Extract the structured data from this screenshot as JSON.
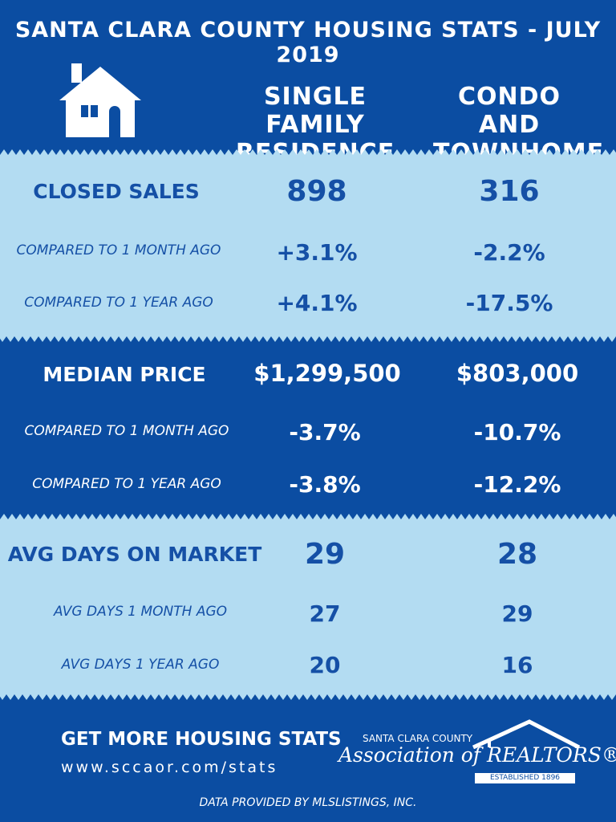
{
  "title": "SANTA CLARA COUNTY HOUSING STATS - JULY 2019",
  "columns": {
    "sfr": "SINGLE FAMILY\nRESIDENCE",
    "condo": "CONDO AND\nTOWNHOME"
  },
  "sections": {
    "closed_sales": {
      "label": "CLOSED SALES",
      "sfr": "898",
      "condo": "316",
      "month_label": "COMPARED TO 1 MONTH AGO",
      "month_sfr": "+3.1%",
      "month_condo": "-2.2%",
      "year_label": "COMPARED TO 1 YEAR AGO",
      "year_sfr": "+4.1%",
      "year_condo": "-17.5%"
    },
    "median_price": {
      "label": "MEDIAN PRICE",
      "sfr": "$1,299,500",
      "condo": "$803,000",
      "month_label": "COMPARED TO 1 MONTH AGO",
      "month_sfr": "-3.7%",
      "month_condo": "-10.7%",
      "year_label": "COMPARED TO 1 YEAR AGO",
      "year_sfr": "-3.8%",
      "year_condo": "-12.2%"
    },
    "avg_days": {
      "label": "AVG DAYS ON MARKET",
      "sfr": "29",
      "condo": "28",
      "month_label": "AVG DAYS 1 MONTH AGO",
      "month_sfr": "27",
      "month_condo": "29",
      "year_label": "AVG DAYS 1 YEAR AGO",
      "year_sfr": "20",
      "year_condo": "16"
    }
  },
  "footer": {
    "cta": "GET MORE HOUSING STATS",
    "url": "www.sccaor.com/stats",
    "assoc_county": "SANTA CLARA COUNTY",
    "assoc_name": "Association of REALTORS®",
    "assoc_established": "ESTABLISHED 1896",
    "credit": "DATA PROVIDED BY MLSLISTINGS, INC."
  },
  "colors": {
    "dark_blue": "#0b4da2",
    "light_blue": "#b3dcf2",
    "text_blue": "#1550a6"
  },
  "icons": [
    "house-icon",
    "realtor-roof-logo"
  ]
}
